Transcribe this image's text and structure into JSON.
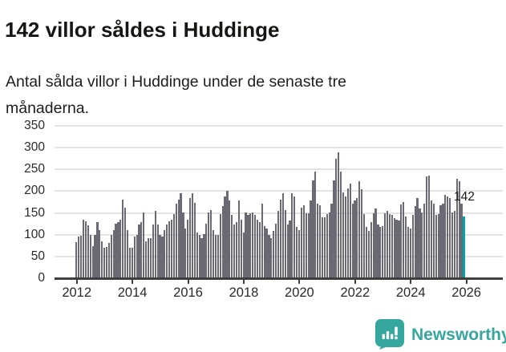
{
  "header": {
    "title": "142 villor såldes i Huddinge",
    "subtitle": "Antal sålda villor i Huddinge under de senaste tre månaderna."
  },
  "annotation": {
    "label": "142"
  },
  "footer": {
    "brand": "Newsworthy",
    "logo_icon": "bar-chart-speech-bubble-icon"
  },
  "colors": {
    "bar": "#6a6a74",
    "highlight_bar": "#00a1a1",
    "brand_teal": "#35a79f",
    "gridline": "#e3e3e3",
    "axis": "#3f3f3f",
    "text_dark": "#161613"
  },
  "chart_data": {
    "type": "bar",
    "title": "142 villor såldes i Huddinge",
    "subtitle": "Antal sålda villor i Huddinge under de senaste tre månaderna.",
    "frequency": "monthly",
    "start": "2012-01",
    "end": "2025-12",
    "xlabel": "",
    "ylabel": "",
    "ylim": [
      0,
      350
    ],
    "ytick_labels": [
      "0",
      "50",
      "100",
      "150",
      "200",
      "250",
      "300",
      "350"
    ],
    "yticks": [
      0,
      50,
      100,
      150,
      200,
      250,
      300,
      350
    ],
    "xtick_labels": [
      "2012",
      "2014",
      "2016",
      "2018",
      "2020",
      "2022",
      "2024",
      "2026"
    ],
    "xtick_years": [
      2012,
      2014,
      2016,
      2018,
      2020,
      2022,
      2024,
      2026
    ],
    "grid": "horizontal",
    "legend_position": "none",
    "highlight_last_value": 142,
    "values": [
      83,
      95,
      97,
      134,
      130,
      121,
      99,
      73,
      99,
      129,
      110,
      84,
      70,
      72,
      81,
      99,
      110,
      126,
      129,
      135,
      181,
      163,
      111,
      70,
      70,
      95,
      100,
      123,
      129,
      151,
      84,
      93,
      93,
      123,
      155,
      123,
      100,
      95,
      110,
      123,
      130,
      135,
      148,
      172,
      180,
      196,
      151,
      114,
      135,
      185,
      196,
      173,
      105,
      100,
      93,
      102,
      126,
      151,
      157,
      111,
      99,
      99,
      148,
      166,
      187,
      200,
      178,
      145,
      124,
      129,
      178,
      135,
      105,
      151,
      145,
      150,
      151,
      145,
      135,
      129,
      172,
      120,
      114,
      99,
      93,
      108,
      126,
      154,
      181,
      196,
      157,
      123,
      132,
      196,
      187,
      117,
      111,
      163,
      167,
      149,
      149,
      178,
      224,
      245,
      172,
      167,
      140,
      140,
      148,
      151,
      172,
      224,
      274,
      289,
      245,
      198,
      187,
      207,
      218,
      172,
      179,
      184,
      222,
      204,
      148,
      118,
      108,
      129,
      150,
      160,
      123,
      117,
      120,
      150,
      154,
      148,
      145,
      139,
      135,
      132,
      169,
      175,
      141,
      117,
      114,
      146,
      166,
      185,
      160,
      151,
      172,
      234,
      236,
      178,
      172,
      145,
      148,
      167,
      172,
      191,
      187,
      184,
      151,
      154,
      228,
      222,
      172,
      142
    ]
  }
}
